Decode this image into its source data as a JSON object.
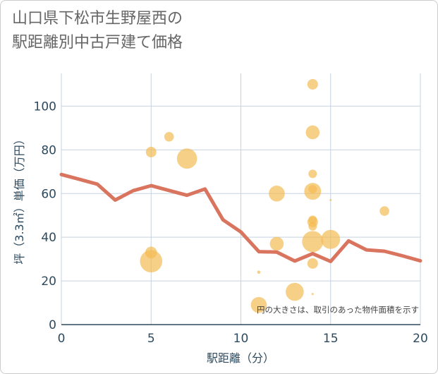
{
  "title_line1": "山口県下松市生野屋西の",
  "title_line2": "駅距離別中古戸建て価格",
  "chart_data": {
    "type": "scatter",
    "xlabel": "駅距離（分）",
    "ylabel": "坪（3.3㎡）単価（万円）",
    "xlim": [
      0,
      20
    ],
    "ylim": [
      0,
      115
    ],
    "xticks": [
      0,
      5,
      10,
      15,
      20
    ],
    "yticks": [
      0,
      20,
      40,
      60,
      80,
      100
    ],
    "grid": true,
    "annotation": "円の大きさは、取引のあった物件面積を示す",
    "colors": {
      "bubble": "#f3b94f",
      "line": "#d9745f",
      "grid": "#c5d3e0",
      "text": "#2d4a5f"
    },
    "bubbles": [
      {
        "x": 5,
        "y": 79,
        "size": 1.0
      },
      {
        "x": 6,
        "y": 86,
        "size": 0.9
      },
      {
        "x": 7,
        "y": 76,
        "size": 1.9
      },
      {
        "x": 5,
        "y": 33,
        "size": 1.1
      },
      {
        "x": 5,
        "y": 29,
        "size": 2.1
      },
      {
        "x": 11,
        "y": 24,
        "size": 0.3
      },
      {
        "x": 11,
        "y": 9,
        "size": 1.5
      },
      {
        "x": 12,
        "y": 60,
        "size": 1.5
      },
      {
        "x": 12,
        "y": 37,
        "size": 1.3
      },
      {
        "x": 13,
        "y": 15,
        "size": 1.7
      },
      {
        "x": 14,
        "y": 110,
        "size": 1.0
      },
      {
        "x": 14,
        "y": 88,
        "size": 1.3
      },
      {
        "x": 14,
        "y": 69,
        "size": 0.8
      },
      {
        "x": 14,
        "y": 62,
        "size": 0.8
      },
      {
        "x": 14,
        "y": 61,
        "size": 1.6
      },
      {
        "x": 14,
        "y": 48,
        "size": 0.8
      },
      {
        "x": 14,
        "y": 47,
        "size": 1.0
      },
      {
        "x": 14,
        "y": 45,
        "size": 0.8
      },
      {
        "x": 14,
        "y": 38,
        "size": 2.0
      },
      {
        "x": 14,
        "y": 28,
        "size": 1.0
      },
      {
        "x": 14,
        "y": 14,
        "size": 0.2
      },
      {
        "x": 15,
        "y": 57,
        "size": 0.2
      },
      {
        "x": 15,
        "y": 39,
        "size": 1.8
      },
      {
        "x": 18,
        "y": 52,
        "size": 0.9
      }
    ],
    "trend_line": {
      "x": [
        0,
        1,
        2,
        3,
        4,
        5,
        6,
        7,
        8,
        9,
        10,
        11,
        12,
        13,
        14,
        15,
        16,
        17,
        18,
        19,
        20
      ],
      "y": [
        68.7,
        66.5,
        64.3,
        57.0,
        61.3,
        63.6,
        61.4,
        59.2,
        62.1,
        48.0,
        42.4,
        33.4,
        33.2,
        29.1,
        32.5,
        28.9,
        38.3,
        34.2,
        33.6,
        31.5,
        29.2
      ]
    }
  }
}
